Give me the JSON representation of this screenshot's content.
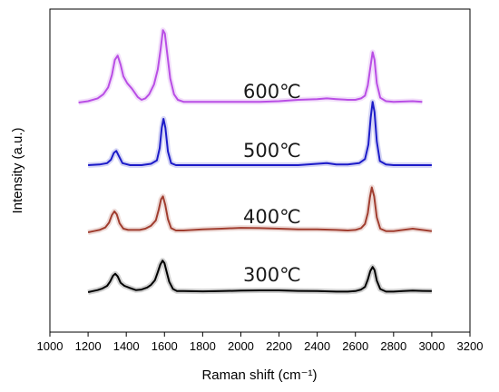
{
  "chart_data": {
    "type": "line",
    "title": "",
    "xlabel": "Raman shift (cm⁻¹)",
    "ylabel": "Intensity (a.u.)",
    "xlim": [
      1000,
      3200
    ],
    "x_ticks": [
      1000,
      1200,
      1400,
      1600,
      1800,
      2000,
      2200,
      2400,
      2600,
      2800,
      3000,
      3200
    ],
    "y_ticks_shown": false,
    "grid": false,
    "legend": "inline labels",
    "series": [
      {
        "name": "300℃",
        "color": "#000000",
        "x": [
          1200,
          1225,
          1250,
          1275,
          1300,
          1315,
          1330,
          1342,
          1355,
          1370,
          1390,
          1420,
          1450,
          1480,
          1510,
          1530,
          1550,
          1565,
          1578,
          1590,
          1600,
          1612,
          1625,
          1645,
          1665,
          1700,
          1800,
          1900,
          2000,
          2100,
          2200,
          2300,
          2400,
          2500,
          2560,
          2600,
          2630,
          2650,
          2665,
          2678,
          2690,
          2700,
          2712,
          2730,
          2760,
          2800,
          2850,
          2900,
          2950,
          3000
        ],
        "y": [
          0,
          0.02,
          0.04,
          0.07,
          0.12,
          0.2,
          0.31,
          0.35,
          0.3,
          0.18,
          0.12,
          0.08,
          0.04,
          0.05,
          0.09,
          0.14,
          0.23,
          0.38,
          0.52,
          0.6,
          0.55,
          0.38,
          0.2,
          0.06,
          0.02,
          0.02,
          0.015,
          0.02,
          0.03,
          0.035,
          0.035,
          0.025,
          0.02,
          0.01,
          0.01,
          0.02,
          0.05,
          0.1,
          0.24,
          0.4,
          0.48,
          0.42,
          0.22,
          0.06,
          0.01,
          0.01,
          0.02,
          0.03,
          0.025,
          0.02
        ]
      },
      {
        "name": "400℃",
        "color": "#a03d2f",
        "x": [
          1200,
          1230,
          1260,
          1290,
          1310,
          1325,
          1338,
          1350,
          1365,
          1385,
          1410,
          1440,
          1470,
          1500,
          1530,
          1555,
          1570,
          1582,
          1592,
          1604,
          1618,
          1635,
          1660,
          1700,
          1800,
          1900,
          2000,
          2100,
          2200,
          2300,
          2400,
          2500,
          2560,
          2600,
          2630,
          2650,
          2665,
          2676,
          2686,
          2698,
          2712,
          2730,
          2760,
          2800,
          2850,
          2900,
          2950,
          3000
        ],
        "y": [
          0,
          0.02,
          0.04,
          0.08,
          0.16,
          0.29,
          0.35,
          0.3,
          0.15,
          0.06,
          0.04,
          0.04,
          0.04,
          0.06,
          0.11,
          0.2,
          0.38,
          0.55,
          0.6,
          0.46,
          0.22,
          0.07,
          0.03,
          0.03,
          0.05,
          0.06,
          0.075,
          0.07,
          0.06,
          0.05,
          0.05,
          0.04,
          0.03,
          0.04,
          0.07,
          0.14,
          0.32,
          0.58,
          0.75,
          0.6,
          0.25,
          0.06,
          0.02,
          0.02,
          0.04,
          0.06,
          0.04,
          0.02
        ]
      },
      {
        "name": "500℃",
        "color": "#1c1bc8",
        "x": [
          1200,
          1260,
          1300,
          1320,
          1335,
          1348,
          1362,
          1380,
          1420,
          1480,
          1530,
          1560,
          1575,
          1586,
          1595,
          1605,
          1618,
          1635,
          1660,
          1700,
          1800,
          1900,
          2000,
          2100,
          2200,
          2300,
          2400,
          2450,
          2500,
          2560,
          2620,
          2650,
          2668,
          2680,
          2690,
          2700,
          2712,
          2728,
          2760,
          2800,
          2900,
          3000
        ],
        "y": [
          0,
          0.01,
          0.03,
          0.08,
          0.18,
          0.21,
          0.13,
          0.03,
          0.0,
          0.0,
          0.02,
          0.07,
          0.25,
          0.55,
          0.68,
          0.55,
          0.2,
          0.03,
          0.0,
          0.0,
          0.0,
          0.0,
          0.0,
          0.0,
          0.0,
          0.0,
          0.02,
          0.03,
          0.01,
          0.01,
          0.03,
          0.09,
          0.3,
          0.7,
          0.93,
          0.78,
          0.35,
          0.06,
          0.01,
          0.0,
          0.0,
          0.0
        ]
      },
      {
        "name": "600℃",
        "color": "#b94ee5",
        "x": [
          1150,
          1200,
          1250,
          1280,
          1305,
          1325,
          1340,
          1355,
          1370,
          1385,
          1405,
          1430,
          1460,
          1480,
          1500,
          1520,
          1545,
          1565,
          1580,
          1592,
          1602,
          1615,
          1630,
          1650,
          1670,
          1700,
          1800,
          1900,
          2000,
          2100,
          2200,
          2300,
          2400,
          2450,
          2500,
          2560,
          2600,
          2630,
          2650,
          2665,
          2678,
          2690,
          2700,
          2712,
          2730,
          2760,
          2800,
          2900,
          2950
        ],
        "y": [
          0,
          0.02,
          0.06,
          0.12,
          0.22,
          0.4,
          0.62,
          0.68,
          0.55,
          0.38,
          0.28,
          0.2,
          0.08,
          0.04,
          0.06,
          0.12,
          0.26,
          0.48,
          0.78,
          1.05,
          1.0,
          0.7,
          0.35,
          0.12,
          0.04,
          0.01,
          0.01,
          0.01,
          0.01,
          0.01,
          0.02,
          0.04,
          0.05,
          0.06,
          0.05,
          0.04,
          0.04,
          0.06,
          0.1,
          0.25,
          0.5,
          0.73,
          0.62,
          0.28,
          0.07,
          0.02,
          0.01,
          0.02,
          0.01
        ]
      }
    ]
  }
}
